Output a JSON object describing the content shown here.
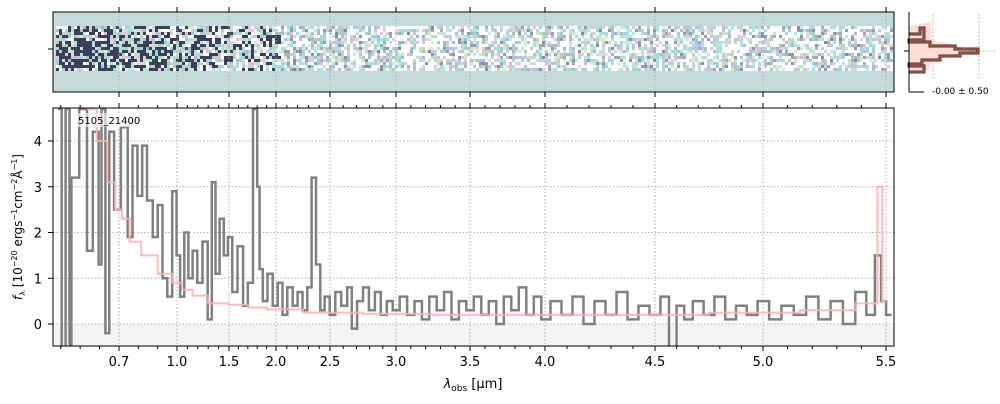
{
  "chart_data": [
    {
      "type": "image",
      "title": "",
      "description_label": "2D spectrum",
      "colors": {
        "background": "#c4dbd9",
        "dark": "#1a1a2e"
      }
    },
    {
      "type": "histogram",
      "annotation": "-0.00 ± 0.50",
      "colors": {
        "outline": "#3a2a26",
        "inner": "#e0705a",
        "fill": "#ffd6cc"
      }
    },
    {
      "type": "line",
      "label": "5105_21400",
      "xlabel": "λobs [μm]",
      "xlabel_parts": {
        "sym": "λ",
        "sub": "obs",
        "unit": " [μm]"
      },
      "ylabel_parts": {
        "f": "f",
        "sub": "λ",
        "rest": " [10",
        "e1": "−20",
        "mid": " ergs",
        "e2": "−1",
        "mid2": "cm",
        "e3": "−2",
        "mid3": "Å",
        "e4": "−1",
        "end": "]"
      },
      "xlim": [
        0.36,
        5.53
      ],
      "ylim": [
        -0.5,
        4.7
      ],
      "xticks": [
        0.7,
        1.0,
        1.5,
        2.0,
        2.5,
        3.0,
        3.5,
        4.0,
        4.5,
        5.0,
        5.5
      ],
      "xtick_labels": [
        "0.7",
        "1.0",
        "1.5",
        "2.0",
        "2.5",
        "3.0",
        "3.5",
        "4.0",
        "4.5",
        "5.0",
        "5.5"
      ],
      "yticks": [
        0,
        1,
        2,
        3,
        4
      ],
      "ytick_labels": [
        "0",
        "1",
        "2",
        "3",
        "4"
      ],
      "grid": true,
      "colors": {
        "data": "#808080",
        "model": "#ffb0b0",
        "zero_band": "#f4f4f4"
      },
      "series": [
        {
          "name": "data",
          "x": [
            0.4,
            0.41,
            0.44,
            0.45,
            0.46,
            0.53,
            0.54,
            0.59,
            0.6,
            0.62,
            0.64,
            0.66,
            0.69,
            0.73,
            0.76,
            0.78,
            0.81,
            0.83,
            0.86,
            0.89,
            0.91,
            0.94,
            0.96,
            0.99,
            1.01,
            1.05,
            1.09,
            1.13,
            1.17,
            1.22,
            1.27,
            1.32,
            1.35,
            1.39,
            1.43,
            1.47,
            1.51,
            1.56,
            1.62,
            1.68,
            1.72,
            1.79,
            1.81,
            1.84,
            1.88,
            1.94,
            1.99,
            2.04,
            2.08,
            2.13,
            2.18,
            2.22,
            2.27,
            2.31,
            2.35,
            2.39,
            2.43,
            2.47,
            2.52,
            2.56,
            2.61,
            2.65,
            2.68,
            2.73,
            2.77,
            2.82,
            2.86,
            2.91,
            2.95,
            3.0,
            3.05,
            3.1,
            3.15,
            3.2,
            3.25,
            3.3,
            3.35,
            3.4,
            3.45,
            3.5,
            3.55,
            3.6,
            3.65,
            3.7,
            3.75,
            3.8,
            3.85,
            3.9,
            3.95,
            4.0,
            4.05,
            4.1,
            4.15,
            4.2,
            4.25,
            4.3,
            4.35,
            4.4,
            4.45,
            4.5,
            4.55,
            4.58,
            4.62,
            4.65,
            4.7,
            4.75,
            4.8,
            4.85,
            4.9,
            4.95,
            5.0,
            5.05,
            5.1,
            5.15,
            5.2,
            5.25,
            5.3,
            5.35,
            5.4,
            5.44,
            5.47,
            5.49,
            5.51
          ],
          "y": [
            4.7,
            -0.5,
            4.7,
            -0.5,
            3.2,
            4.7,
            1.6,
            4.2,
            1.3,
            4.7,
            -0.2,
            4.2,
            2.5,
            4.3,
            1.9,
            3.9,
            2.8,
            3.9,
            2.7,
            1.9,
            2.6,
            1.0,
            0.6,
            2.9,
            1.5,
            0.6,
            2.0,
            1.0,
            1.6,
            0.9,
            1.8,
            0.1,
            3.1,
            1.1,
            2.3,
            1.5,
            1.9,
            0.7,
            1.7,
            0.4,
            0.9,
            4.7,
            3.0,
            1.2,
            0.5,
            1.1,
            0.4,
            0.9,
            0.2,
            0.8,
            0.4,
            0.7,
            0.3,
            0.8,
            3.2,
            1.3,
            0.3,
            0.6,
            0.2,
            0.7,
            0.4,
            0.8,
            -0.1,
            0.5,
            0.8,
            0.3,
            0.7,
            0.2,
            0.5,
            0.3,
            0.6,
            0.2,
            0.5,
            0.1,
            0.6,
            0.3,
            0.7,
            0.1,
            0.5,
            0.3,
            0.6,
            0.2,
            0.5,
            0.0,
            0.6,
            0.3,
            0.8,
            0.2,
            0.6,
            0.1,
            0.5,
            0.2,
            0.6,
            0.0,
            0.5,
            0.2,
            0.7,
            0.1,
            0.4,
            0.2,
            0.6,
            -0.5,
            0.4,
            0.1,
            0.5,
            0.2,
            0.6,
            0.1,
            0.4,
            0.2,
            0.5,
            0.1,
            0.4,
            0.2,
            0.6,
            0.1,
            0.5,
            0.0,
            0.7,
            0.2,
            1.5,
            0.5,
            0.2
          ]
        },
        {
          "name": "model",
          "x": [
            0.55,
            0.62,
            0.66,
            0.7,
            0.73,
            0.78,
            0.85,
            0.95,
            1.0,
            1.1,
            1.2,
            1.4,
            1.6,
            1.8,
            2.0,
            2.5,
            3.0,
            3.5,
            4.0,
            4.5,
            5.0,
            5.3,
            5.45,
            5.48,
            5.49
          ],
          "y": [
            4.7,
            4.0,
            3.1,
            2.5,
            2.3,
            1.8,
            1.5,
            1.1,
            0.9,
            0.75,
            0.62,
            0.45,
            0.42,
            0.36,
            0.32,
            0.25,
            0.22,
            0.2,
            0.2,
            0.2,
            0.25,
            0.3,
            0.45,
            3.0,
            0.5
          ]
        }
      ]
    }
  ]
}
